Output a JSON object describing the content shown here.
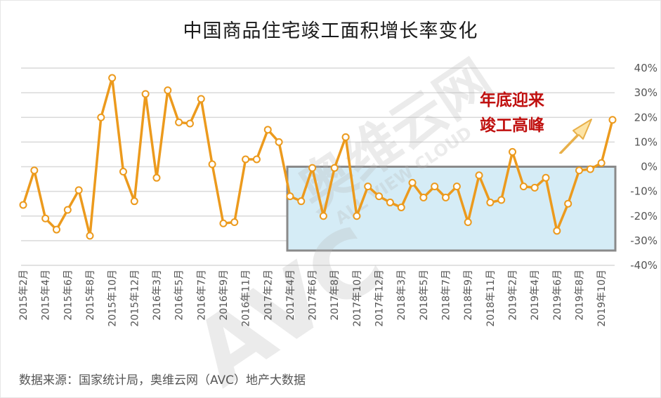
{
  "chart_data": {
    "type": "line",
    "title": "中国商品住宅竣工面积增长率变化",
    "source": "数据来源：国家统计局，奥维云网（AVC）地产大数据",
    "annotation": {
      "line1": "年底迎来",
      "line2": "竣工高峰"
    },
    "watermark": {
      "logo": "AVC",
      "line1": "奥维云网",
      "line2": "ALL VIEW CLOUD"
    },
    "ylim": [
      -40,
      40
    ],
    "yticks": [
      "40%",
      "30%",
      "20%",
      "10%",
      "0%",
      "-10%",
      "-20%",
      "-30%",
      "-40%"
    ],
    "x_labels": [
      "2015年2月",
      "2015年4月",
      "2015年6月",
      "2015年8月",
      "2015年10月",
      "2015年12月",
      "2016年3月",
      "2016年5月",
      "2016年7月",
      "2016年9月",
      "2016年11月",
      "2017年2月",
      "2017年4月",
      "2017年6月",
      "2017年8月",
      "2017年10月",
      "2017年12月",
      "2018年3月",
      "2018年5月",
      "2018年7月",
      "2018年9月",
      "2018年11月",
      "2019年2月",
      "2019年4月",
      "2019年6月",
      "2019年8月",
      "2019年10月"
    ],
    "series": [
      {
        "values": [
          -15.5,
          -1.5,
          -21,
          -25.5,
          -17.5,
          -9.5,
          -28,
          20,
          36,
          -2,
          -14,
          29.5,
          -4.5,
          31,
          18,
          17.5,
          27.5,
          1,
          -23,
          -22.5,
          3,
          3,
          15,
          10,
          -12,
          -14,
          -0.5,
          -20,
          -0.5,
          12,
          -20,
          -8,
          -12,
          -14.5,
          -16.5,
          -6.5,
          -12.5,
          -8,
          -12.5,
          -8,
          -22.5,
          -3.5,
          -14.5,
          -13.5,
          6,
          -8,
          -8.5,
          -4.5,
          -26,
          -15,
          -1.5,
          -1,
          1.5,
          19
        ]
      }
    ],
    "highlight_range_percent": [
      -34,
      0
    ],
    "colors": {
      "line": "#ec9a1d",
      "point_fill": "#ffffff",
      "grid": "#d9d9d9",
      "highlight_fill": "#d5ecf6",
      "highlight_border": "#8a8a8a"
    }
  }
}
